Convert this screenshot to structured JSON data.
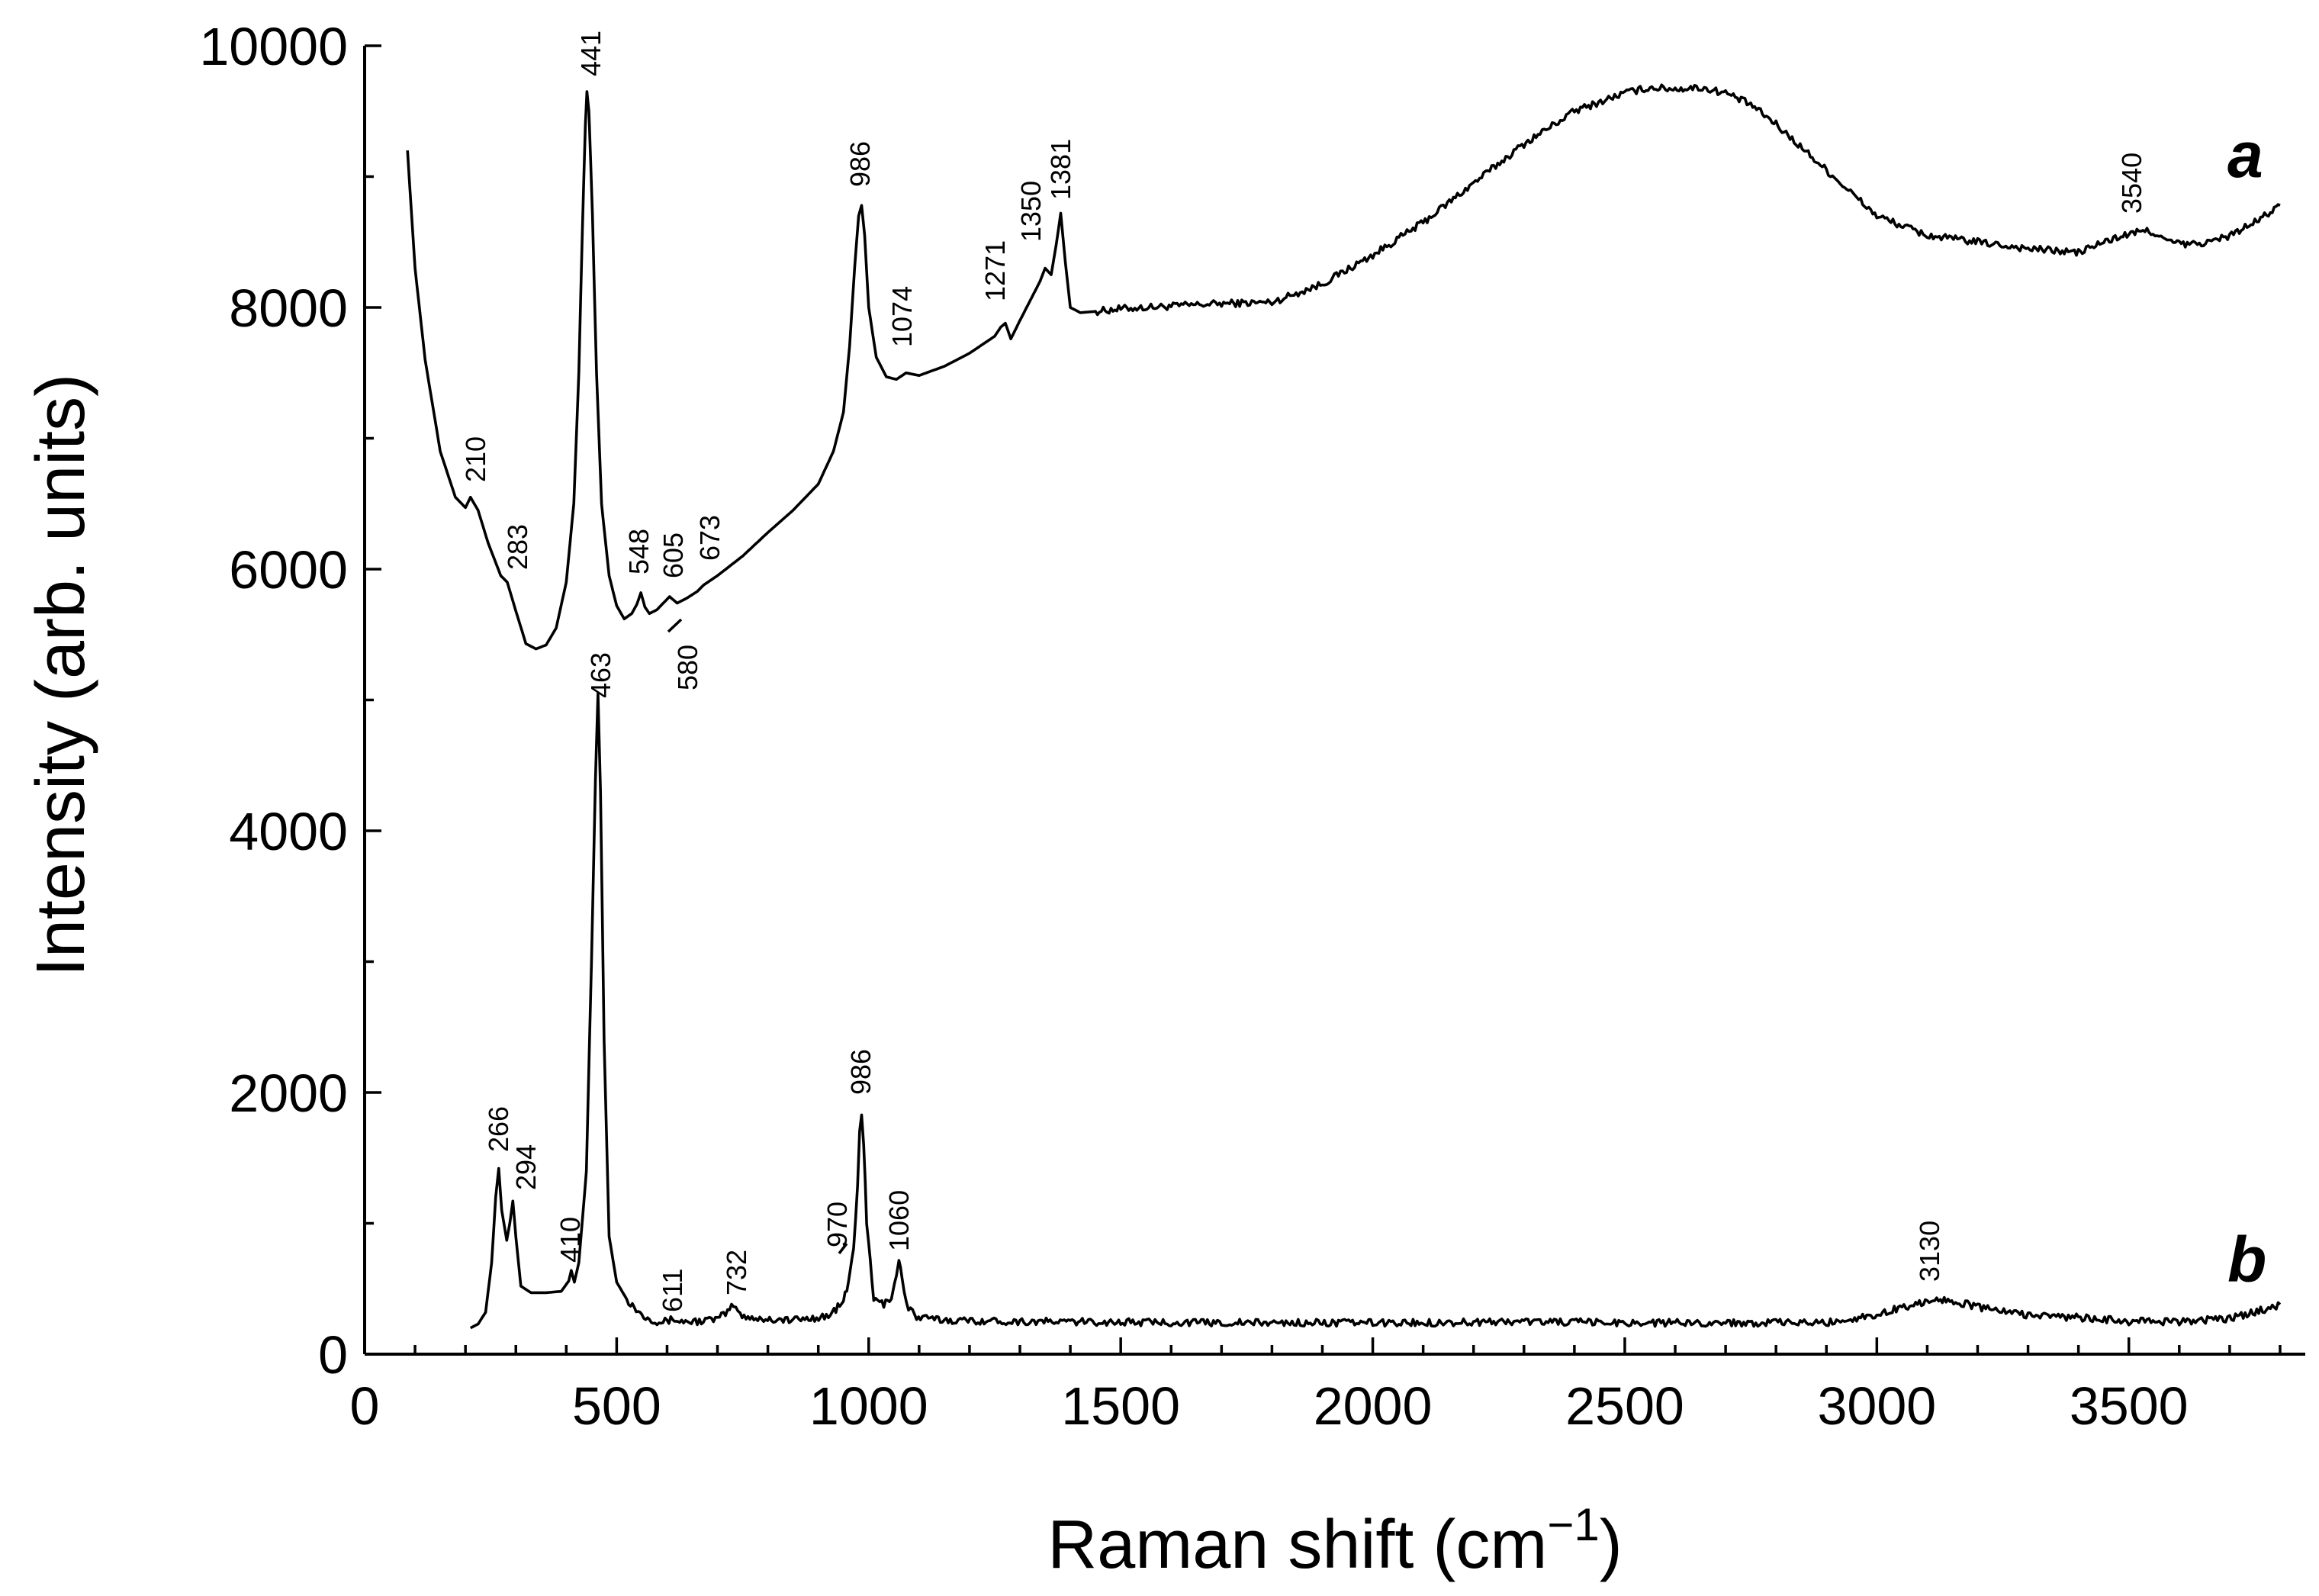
{
  "chart_data": {
    "type": "line",
    "title": "",
    "xlabel": "Raman shift (cm",
    "xlabel_superscript": "−1",
    "xlabel_suffix": ")",
    "ylabel": "Intensity (arb. units)",
    "xlim": [
      0,
      3850
    ],
    "ylim": [
      0,
      10000
    ],
    "xticks": [
      0,
      500,
      1000,
      1500,
      2000,
      2500,
      3000,
      3500
    ],
    "yticks": [
      0,
      2000,
      4000,
      6000,
      8000,
      10000
    ],
    "x_minor_step": 100,
    "y_minor_step": 1000,
    "series": [
      {
        "name": "a",
        "x": [
          85,
          100,
          120,
          150,
          180,
          200,
          210,
          225,
          245,
          270,
          283,
          300,
          320,
          340,
          360,
          380,
          400,
          415,
          425,
          432,
          438,
          441,
          445,
          452,
          460,
          470,
          485,
          500,
          515,
          530,
          540,
          548,
          556,
          565,
          580,
          595,
          605,
          620,
          640,
          660,
          673,
          700,
          750,
          800,
          850,
          900,
          930,
          950,
          962,
          972,
          980,
          986,
          992,
          1000,
          1015,
          1035,
          1055,
          1074,
          1100,
          1150,
          1200,
          1250,
          1262,
          1271,
          1282,
          1300,
          1320,
          1340,
          1350,
          1362,
          1372,
          1381,
          1390,
          1400,
          1420,
          1450,
          1500,
          1600,
          1700,
          1800,
          1900,
          2000,
          2100,
          2200,
          2300,
          2400,
          2500,
          2550,
          2600,
          2650,
          2700,
          2750,
          2800,
          2900,
          3000,
          3100,
          3200,
          3300,
          3400,
          3450,
          3500,
          3540,
          3580,
          3620,
          3660,
          3700,
          3750,
          3800
        ],
        "y": [
          9200,
          8300,
          7600,
          6900,
          6550,
          6470,
          6550,
          6450,
          6200,
          5950,
          5900,
          5680,
          5430,
          5390,
          5420,
          5550,
          5900,
          6500,
          7500,
          8600,
          9400,
          9650,
          9500,
          8700,
          7500,
          6500,
          5950,
          5720,
          5620,
          5660,
          5730,
          5820,
          5710,
          5660,
          5690,
          5750,
          5790,
          5740,
          5780,
          5830,
          5880,
          5950,
          6100,
          6280,
          6450,
          6650,
          6900,
          7200,
          7700,
          8300,
          8700,
          8780,
          8550,
          8000,
          7620,
          7470,
          7450,
          7500,
          7480,
          7550,
          7650,
          7780,
          7850,
          7880,
          7760,
          7900,
          8050,
          8200,
          8300,
          8250,
          8480,
          8720,
          8350,
          8000,
          7960,
          7970,
          7990,
          8010,
          8030,
          8040,
          8180,
          8400,
          8650,
          8950,
          9250,
          9500,
          9640,
          9680,
          9670,
          9680,
          9640,
          9550,
          9400,
          9050,
          8700,
          8550,
          8500,
          8450,
          8420,
          8500,
          8560,
          8590,
          8500,
          8480,
          8500,
          8550,
          8650,
          8780
        ]
      },
      {
        "name": "b",
        "x": [
          210,
          225,
          240,
          252,
          260,
          266,
          272,
          282,
          288,
          294,
          300,
          310,
          330,
          360,
          390,
          405,
          410,
          416,
          425,
          440,
          450,
          458,
          463,
          468,
          475,
          485,
          500,
          520,
          550,
          580,
          600,
          611,
          625,
          660,
          700,
          720,
          732,
          745,
          780,
          850,
          920,
          950,
          960,
          970,
          978,
          982,
          986,
          990,
          996,
          1010,
          1030,
          1045,
          1055,
          1060,
          1066,
          1075,
          1095,
          1150,
          1300,
          1500,
          1700,
          1900,
          2100,
          2300,
          2500,
          2700,
          2900,
          3000,
          3050,
          3100,
          3130,
          3160,
          3200,
          3300,
          3400,
          3500,
          3600,
          3700,
          3750,
          3800
        ],
        "y": [
          200,
          230,
          320,
          700,
          1200,
          1420,
          1100,
          870,
          1000,
          1170,
          900,
          520,
          470,
          470,
          480,
          560,
          640,
          550,
          700,
          1400,
          3000,
          4400,
          5050,
          4300,
          2400,
          900,
          550,
          420,
          300,
          250,
          250,
          270,
          250,
          250,
          270,
          320,
          380,
          300,
          270,
          260,
          290,
          400,
          550,
          800,
          1300,
          1700,
          1850,
          1600,
          1000,
          420,
          380,
          440,
          600,
          720,
          600,
          380,
          280,
          260,
          250,
          245,
          240,
          240,
          240,
          250,
          240,
          240,
          240,
          300,
          360,
          400,
          420,
          400,
          360,
          300,
          280,
          250,
          250,
          270,
          320,
          380
        ]
      }
    ],
    "annotations": [
      {
        "text": "441",
        "x": 441
      },
      {
        "text": "210",
        "x": 210
      },
      {
        "text": "283",
        "x": 283
      },
      {
        "text": "548",
        "x": 548
      },
      {
        "text": "605",
        "x": 605
      },
      {
        "text": "673",
        "x": 673
      },
      {
        "text": "580",
        "x": 580
      },
      {
        "text": "986",
        "x": 986
      },
      {
        "text": "1074",
        "x": 1074
      },
      {
        "text": "1271",
        "x": 1271
      },
      {
        "text": "1350",
        "x": 1350
      },
      {
        "text": "1381",
        "x": 1381
      },
      {
        "text": "3540",
        "x": 3540
      },
      {
        "text": "463",
        "x": 463
      },
      {
        "text": "266",
        "x": 266
      },
      {
        "text": "294",
        "x": 294
      },
      {
        "text": "410",
        "x": 410
      },
      {
        "text": "611",
        "x": 611
      },
      {
        "text": "732",
        "x": 732
      },
      {
        "text": "970",
        "x": 970
      },
      {
        "text": "986",
        "x": 986
      },
      {
        "text": "1060",
        "x": 1060
      },
      {
        "text": "3130",
        "x": 3130
      }
    ]
  }
}
